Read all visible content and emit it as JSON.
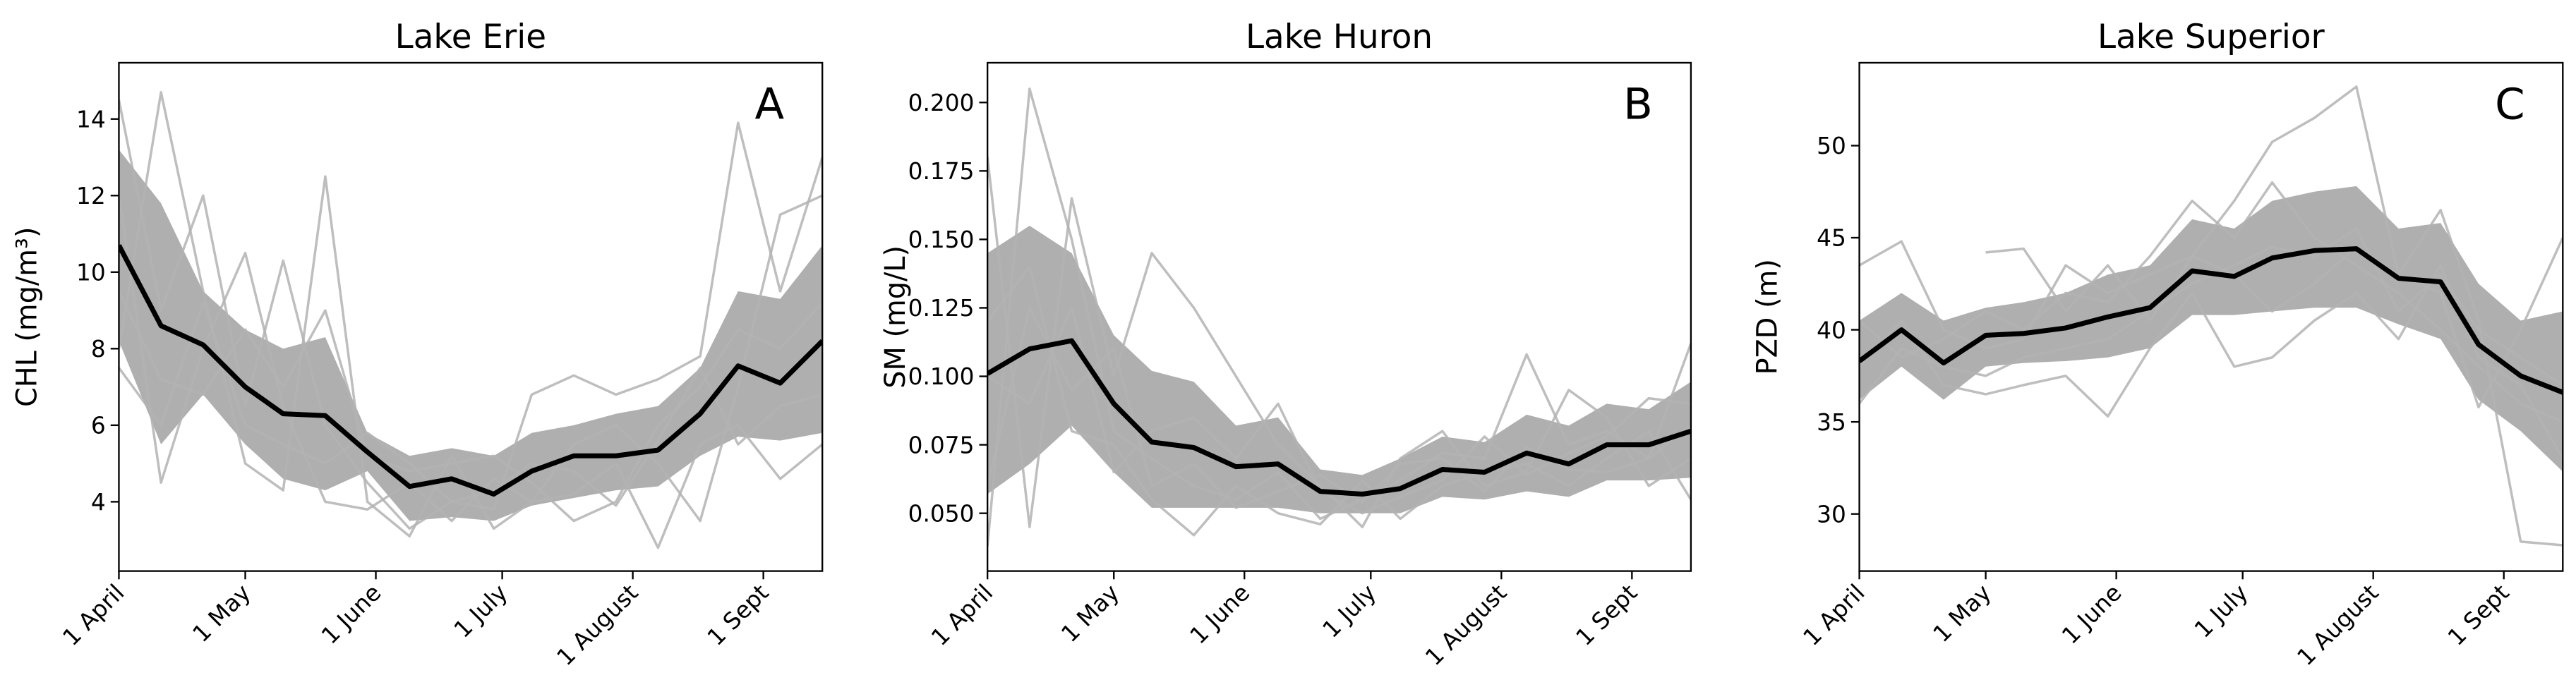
{
  "chart_data": [
    {
      "type": "line",
      "title": "Lake Erie",
      "ylabel": "CHL (mg/m³)",
      "annotation": "A",
      "x": [
        91,
        101,
        111,
        121,
        130,
        140,
        150,
        160,
        170,
        180,
        189,
        199,
        209,
        219,
        229,
        238,
        248,
        258
      ],
      "xlim": [
        91,
        258
      ],
      "xticks": [
        {
          "value": 91,
          "label": "1 April"
        },
        {
          "value": 121,
          "label": "1 May"
        },
        {
          "value": 152,
          "label": "1 June"
        },
        {
          "value": 182,
          "label": "1 July"
        },
        {
          "value": 213,
          "label": "1 August"
        },
        {
          "value": 244,
          "label": "1 Sept"
        }
      ],
      "ylim": [
        2.19,
        15.47
      ],
      "yticks": [
        4,
        6,
        8,
        10,
        12,
        14
      ],
      "band": {
        "color": "#a6a6a6",
        "upper": [
          13.2,
          11.8,
          9.5,
          8.5,
          8.0,
          8.3,
          5.8,
          5.2,
          5.4,
          5.2,
          5.8,
          6.0,
          6.3,
          6.5,
          7.5,
          9.5,
          9.3,
          10.7
        ],
        "lower": [
          8.2,
          5.5,
          6.8,
          5.5,
          4.6,
          4.3,
          4.8,
          3.5,
          3.6,
          3.5,
          3.9,
          4.1,
          4.3,
          4.4,
          5.2,
          5.7,
          5.6,
          5.8
        ]
      },
      "series": [
        {
          "color": "#b3b3b3",
          "linewidth": 1.5,
          "values": [
            14.5,
            9.0,
            12.0,
            6.5,
            10.3,
            6.0,
            4.5,
            3.3,
            4.0,
            3.8,
            6.8,
            7.3,
            6.8,
            7.2,
            7.8,
            13.9,
            9.5,
            13.0
          ]
        },
        {
          "color": "#b3b3b3",
          "linewidth": 1.5,
          "values": [
            8.0,
            14.7,
            9.5,
            5.0,
            4.3,
            12.5,
            4.0,
            3.1,
            5.2,
            3.3,
            4.0,
            4.2,
            5.0,
            2.8,
            5.5,
            6.0,
            4.6,
            5.5
          ]
        },
        {
          "color": "#b3b3b3",
          "linewidth": 1.5,
          "values": [
            12.0,
            4.5,
            8.0,
            10.5,
            6.5,
            4.0,
            3.8,
            4.5,
            3.5,
            4.6,
            4.0,
            5.5,
            6.0,
            5.0,
            3.5,
            7.0,
            11.5,
            12.0
          ]
        },
        {
          "color": "#b3b3b3",
          "linewidth": 1.5,
          "values": [
            9.5,
            7.2,
            6.8,
            8.5,
            7.0,
            9.0,
            5.2,
            4.8,
            5.0,
            5.2,
            4.5,
            3.5,
            4.0,
            6.0,
            7.0,
            8.5,
            8.0,
            9.2
          ]
        },
        {
          "color": "#b3b3b3",
          "linewidth": 1.5,
          "values": [
            7.5,
            6.0,
            9.2,
            6.0,
            5.5,
            5.0,
            5.8,
            5.0,
            4.0,
            4.3,
            5.0,
            4.8,
            3.9,
            5.6,
            7.5,
            5.5,
            6.5,
            6.8
          ]
        },
        {
          "color": "#000000",
          "linewidth": 3,
          "values": [
            10.7,
            8.6,
            8.1,
            7.0,
            6.3,
            6.25,
            5.3,
            4.4,
            4.6,
            4.2,
            4.8,
            5.2,
            5.2,
            5.35,
            6.3,
            7.55,
            7.1,
            8.2
          ]
        }
      ]
    },
    {
      "type": "line",
      "title": "Lake Huron",
      "ylabel": "SM (mg/L)",
      "annotation": "B",
      "x": [
        91,
        101,
        111,
        121,
        130,
        140,
        150,
        160,
        170,
        180,
        189,
        199,
        209,
        219,
        229,
        238,
        248,
        258
      ],
      "xlim": [
        91,
        258
      ],
      "xticks": [
        {
          "value": 91,
          "label": "1 April"
        },
        {
          "value": 121,
          "label": "1 May"
        },
        {
          "value": 152,
          "label": "1 June"
        },
        {
          "value": 182,
          "label": "1 July"
        },
        {
          "value": 213,
          "label": "1 August"
        },
        {
          "value": 244,
          "label": "1 Sept"
        }
      ],
      "ylim": [
        0.0289,
        0.2145
      ],
      "yticks": [
        {
          "value": 0.05,
          "label": "0.050"
        },
        {
          "value": 0.075,
          "label": "0.075"
        },
        {
          "value": 0.1,
          "label": "0.100"
        },
        {
          "value": 0.125,
          "label": "0.125"
        },
        {
          "value": 0.15,
          "label": "0.150"
        },
        {
          "value": 0.175,
          "label": "0.175"
        },
        {
          "value": 0.2,
          "label": "0.200"
        }
      ],
      "band": {
        "color": "#a6a6a6",
        "upper": [
          0.145,
          0.155,
          0.145,
          0.115,
          0.102,
          0.098,
          0.082,
          0.085,
          0.066,
          0.064,
          0.07,
          0.078,
          0.076,
          0.086,
          0.082,
          0.09,
          0.088,
          0.098
        ],
        "lower": [
          0.057,
          0.068,
          0.082,
          0.065,
          0.052,
          0.052,
          0.052,
          0.052,
          0.05,
          0.05,
          0.05,
          0.056,
          0.055,
          0.058,
          0.056,
          0.062,
          0.062,
          0.063
        ]
      },
      "series": [
        {
          "color": "#b3b3b3",
          "linewidth": 1.5,
          "values": [
            0.038,
            0.205,
            0.15,
            0.08,
            0.07,
            0.06,
            0.055,
            0.065,
            0.048,
            0.055,
            0.062,
            0.072,
            0.07,
            0.108,
            0.075,
            0.08,
            0.07,
            0.112
          ]
        },
        {
          "color": "#b3b3b3",
          "linewidth": 1.5,
          "values": [
            0.18,
            0.045,
            0.165,
            0.1,
            0.145,
            0.125,
            0.1,
            0.075,
            0.06,
            0.045,
            0.07,
            0.08,
            0.06,
            0.065,
            0.095,
            0.085,
            0.06,
            0.07
          ]
        },
        {
          "color": "#b3b3b3",
          "linewidth": 1.5,
          "values": [
            0.12,
            0.14,
            0.08,
            0.075,
            0.055,
            0.042,
            0.06,
            0.05,
            0.046,
            0.062,
            0.048,
            0.06,
            0.065,
            0.068,
            0.06,
            0.07,
            0.08,
            0.055
          ]
        },
        {
          "color": "#b3b3b3",
          "linewidth": 1.5,
          "values": [
            0.1,
            0.09,
            0.125,
            0.065,
            0.08,
            0.085,
            0.07,
            0.09,
            0.058,
            0.05,
            0.056,
            0.062,
            0.078,
            0.064,
            0.072,
            0.078,
            0.092,
            0.09
          ]
        },
        {
          "color": "#b3b3b3",
          "linewidth": 1.5,
          "values": [
            0.06,
            0.125,
            0.095,
            0.11,
            0.06,
            0.068,
            0.052,
            0.058,
            0.064,
            0.054,
            0.068,
            0.07,
            0.058,
            0.074,
            0.066,
            0.065,
            0.07,
            0.082
          ]
        },
        {
          "color": "#000000",
          "linewidth": 3,
          "values": [
            0.101,
            0.11,
            0.113,
            0.09,
            0.076,
            0.074,
            0.067,
            0.068,
            0.058,
            0.057,
            0.059,
            0.066,
            0.065,
            0.072,
            0.068,
            0.075,
            0.075,
            0.08
          ]
        }
      ]
    },
    {
      "type": "line",
      "title": "Lake Superior",
      "ylabel": "PZD (m)",
      "annotation": "C",
      "x": [
        91,
        101,
        111,
        121,
        130,
        140,
        150,
        160,
        170,
        180,
        189,
        199,
        209,
        219,
        229,
        238,
        248,
        258
      ],
      "xlim": [
        91,
        258
      ],
      "xticks": [
        {
          "value": 91,
          "label": "1 April"
        },
        {
          "value": 121,
          "label": "1 May"
        },
        {
          "value": 152,
          "label": "1 June"
        },
        {
          "value": 182,
          "label": "1 July"
        },
        {
          "value": 213,
          "label": "1 August"
        },
        {
          "value": 244,
          "label": "1 Sept"
        }
      ],
      "ylim": [
        26.9,
        54.5
      ],
      "yticks": [
        30,
        35,
        40,
        45,
        50
      ],
      "band": {
        "color": "#a6a6a6",
        "upper": [
          40.5,
          42,
          40.5,
          41.2,
          41.5,
          42,
          43,
          43.5,
          46,
          45.5,
          47,
          47.5,
          47.8,
          45.5,
          45.8,
          42.5,
          40.5,
          41
        ],
        "lower": [
          36.2,
          38,
          36.2,
          38,
          38.2,
          38.3,
          38.5,
          39,
          40.8,
          40.8,
          41,
          41.2,
          41.2,
          40.3,
          39.5,
          36.2,
          34.5,
          32.3
        ]
      },
      "series": [
        {
          "color": "#b3b3b3",
          "linewidth": 1.5,
          "values": [
            43.5,
            44.8,
            40.0,
            39.0,
            39.5,
            43.5,
            42.0,
            43.0,
            44.0,
            47.0,
            50.2,
            51.5,
            53.2,
            43.0,
            46.5,
            40.5,
            28.5,
            28.3
          ]
        },
        {
          "color": "#b3b3b3",
          "linewidth": 1.5,
          "values": [
            null,
            null,
            null,
            44.2,
            44.4,
            41.0,
            43.5,
            40.5,
            44.0,
            43.0,
            41.0,
            42.5,
            44.5,
            43.0,
            42.0,
            35.8,
            40.0,
            45.0
          ]
        },
        {
          "color": "#b3b3b3",
          "linewidth": 1.5,
          "values": [
            38.0,
            40.5,
            37.0,
            36.5,
            37.0,
            37.5,
            35.3,
            39.0,
            42.0,
            38.0,
            38.5,
            40.5,
            42.0,
            39.5,
            43.5,
            38.5,
            37.0,
            33.0
          ]
        },
        {
          "color": "#b3b3b3",
          "linewidth": 1.5,
          "values": [
            40.5,
            38.5,
            39.5,
            41.0,
            40.0,
            42.0,
            41.5,
            44.0,
            47.0,
            45.0,
            48.0,
            45.0,
            43.5,
            42.0,
            40.0,
            38.0,
            36.0,
            35.0
          ]
        },
        {
          "color": "#b3b3b3",
          "linewidth": 1.5,
          "values": [
            36.0,
            39.0,
            38.0,
            37.5,
            38.5,
            39.0,
            39.5,
            41.0,
            42.5,
            43.5,
            44.5,
            44.0,
            45.5,
            41.0,
            43.0,
            40.0,
            38.5,
            37.0
          ]
        },
        {
          "color": "#000000",
          "linewidth": 3,
          "values": [
            38.3,
            40.0,
            38.2,
            39.7,
            39.8,
            40.1,
            40.7,
            41.2,
            43.2,
            42.9,
            43.9,
            44.3,
            44.4,
            42.8,
            42.6,
            39.2,
            37.5,
            36.6
          ]
        }
      ]
    }
  ]
}
